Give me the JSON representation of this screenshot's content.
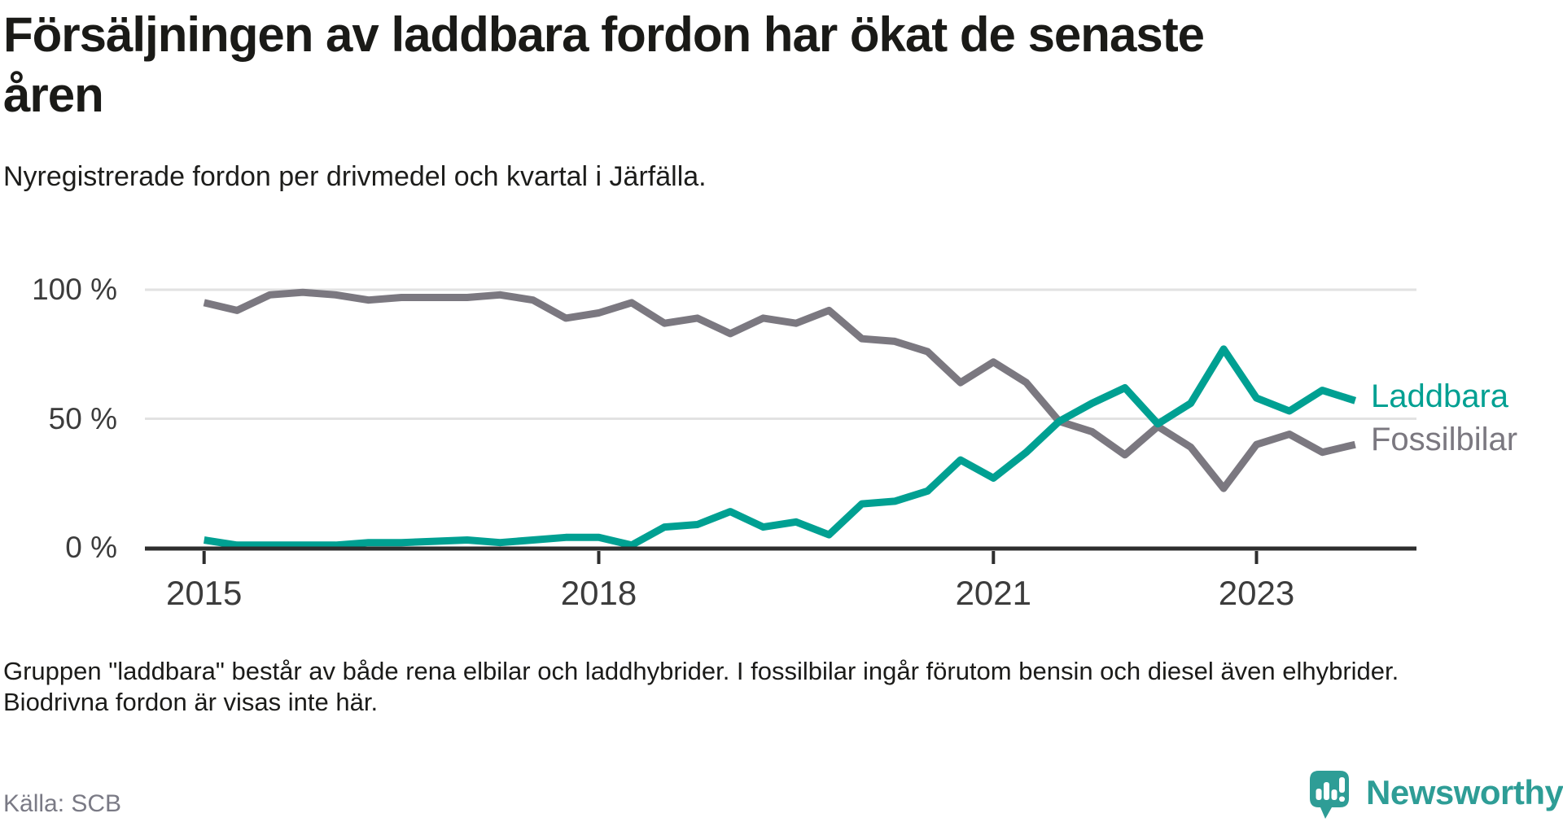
{
  "header": {
    "title": "Försäljningen av laddbara fordon har ökat de senaste åren",
    "subtitle": "Nyregistrerade fordon per drivmedel och kvartal i Järfälla."
  },
  "chart_data": {
    "type": "line",
    "title": "Försäljningen av laddbara fordon har ökat de senaste åren",
    "subtitle": "Nyregistrerade fordon per drivmedel och kvartal i Järfälla.",
    "unit": "%",
    "ylim": [
      0,
      100
    ],
    "grid": "horizontal",
    "y_ticks": [
      {
        "value": 100,
        "label": "100 %"
      },
      {
        "value": 50,
        "label": "50 %"
      },
      {
        "value": 0,
        "label": "0 %"
      }
    ],
    "x_ticks": [
      {
        "index": 0,
        "label": "2015"
      },
      {
        "index": 12,
        "label": "2018"
      },
      {
        "index": 24,
        "label": "2021"
      },
      {
        "index": 32,
        "label": "2023"
      }
    ],
    "categories": [
      "2015 Q1",
      "2015 Q2",
      "2015 Q3",
      "2015 Q4",
      "2016 Q1",
      "2016 Q2",
      "2016 Q3",
      "2016 Q4",
      "2017 Q1",
      "2017 Q2",
      "2017 Q3",
      "2017 Q4",
      "2018 Q1",
      "2018 Q2",
      "2018 Q3",
      "2018 Q4",
      "2019 Q1",
      "2019 Q2",
      "2019 Q3",
      "2019 Q4",
      "2020 Q1",
      "2020 Q2",
      "2020 Q3",
      "2020 Q4",
      "2021 Q1",
      "2021 Q2",
      "2021 Q3",
      "2021 Q4",
      "2022 Q1",
      "2022 Q2",
      "2022 Q3",
      "2022 Q4",
      "2023 Q1",
      "2023 Q2",
      "2023 Q3",
      "2023 Q4"
    ],
    "series": [
      {
        "name": "Laddbara",
        "color": "#00A092",
        "values": [
          3,
          1,
          1,
          1,
          1,
          2,
          2,
          2.5,
          3,
          2,
          3,
          4,
          4,
          1,
          8,
          9,
          14,
          8,
          10,
          5,
          17,
          18,
          22,
          34,
          27,
          37,
          49,
          56,
          62,
          48,
          56,
          77,
          58,
          53,
          61,
          57
        ]
      },
      {
        "name": "Fossilbilar",
        "color": "#7B7880",
        "values": [
          95,
          92,
          98,
          99,
          98,
          96,
          97,
          97,
          97,
          98,
          96,
          89,
          91,
          95,
          87,
          89,
          83,
          89,
          87,
          92,
          81,
          80,
          76,
          64,
          72,
          64,
          49,
          45,
          36,
          47,
          39,
          23,
          40,
          44,
          37,
          40
        ]
      }
    ],
    "legend_position": "right-end-of-lines"
  },
  "footer": {
    "note": "Gruppen \"laddbara\" består av både rena elbilar och laddhybrider. I fossilbilar ingår förutom bensin och diesel även elhybrider. Biodrivna fordon är visas inte här.",
    "source": "Källa: SCB"
  },
  "logo": {
    "text": "Newsworthy"
  },
  "colors": {
    "laddbara": "#00A092",
    "fossilbilar": "#7B7880",
    "gridline": "#E2E2E2",
    "axis": "#2E2E2E",
    "logo_teal": "#2E9D96"
  }
}
